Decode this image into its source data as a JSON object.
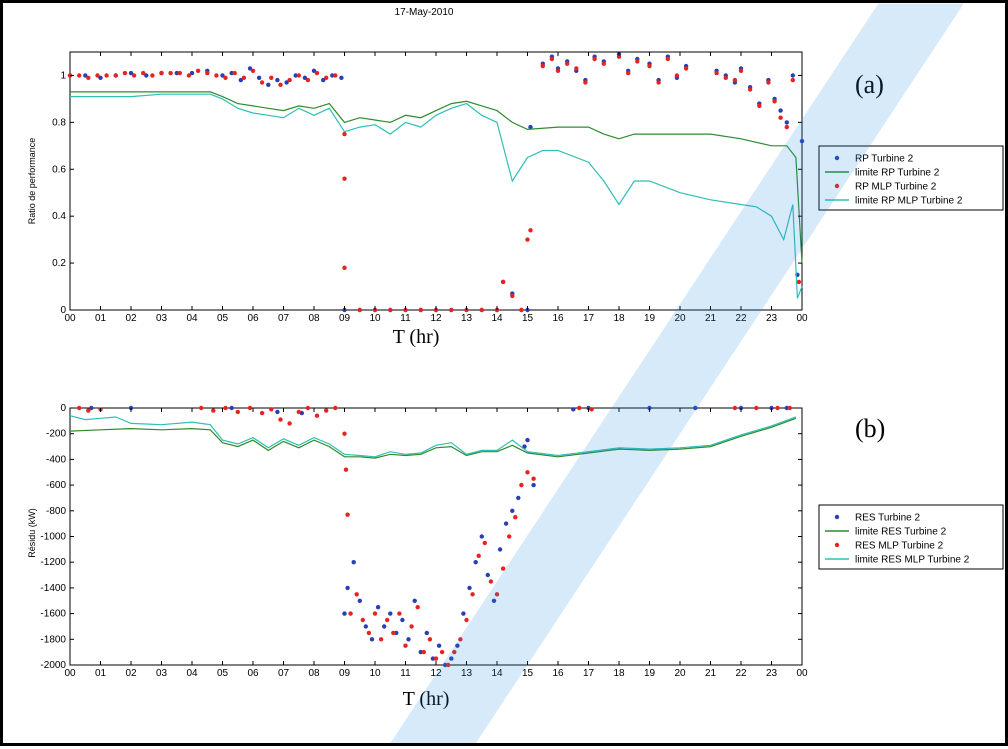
{
  "chart_data": [
    {
      "type": "scatter",
      "panel_label": "(a)",
      "title": "17-May-2010",
      "xlabel": "T (hr)",
      "ylabel": "Ratio de performance",
      "xlim": [
        0,
        24
      ],
      "ylim": [
        0,
        1.1
      ],
      "xticks": [
        "00",
        "01",
        "02",
        "03",
        "04",
        "05",
        "06",
        "07",
        "08",
        "09",
        "10",
        "11",
        "12",
        "13",
        "14",
        "15",
        "16",
        "17",
        "18",
        "19",
        "20",
        "21",
        "22",
        "23",
        "00"
      ],
      "yticks": [
        "0",
        "0.2",
        "0.4",
        "0.6",
        "0.8",
        "1"
      ],
      "legend_position": "right",
      "series": [
        {
          "name": "RP Turbine 2",
          "kind": "points",
          "color": "#2a3fb5",
          "x": [
            0,
            0.5,
            1,
            1.5,
            2,
            2.5,
            3,
            3.5,
            4,
            4.5,
            5,
            5.3,
            5.6,
            5.9,
            6.2,
            6.5,
            6.8,
            7.1,
            7.4,
            7.7,
            8,
            8.3,
            8.6,
            8.9,
            9,
            9.5,
            10,
            10.5,
            11,
            11.5,
            12,
            12.5,
            13,
            13.5,
            14,
            14.2,
            14.5,
            14.8,
            15,
            15.1,
            15.5,
            15.8,
            16,
            16.3,
            16.6,
            16.9,
            17.2,
            17.5,
            18,
            18.3,
            18.6,
            19,
            19.3,
            19.6,
            19.9,
            20.2,
            21.2,
            21.5,
            21.8,
            22,
            22.3,
            22.6,
            22.9,
            23.1,
            23.3,
            23.5,
            23.7,
            23.85,
            24
          ],
          "y": [
            1.0,
            1.0,
            0.99,
            1.0,
            1.01,
            1.0,
            1.01,
            1.01,
            1.01,
            1.02,
            1.0,
            1.01,
            0.98,
            1.03,
            0.99,
            0.96,
            0.98,
            0.97,
            1.0,
            0.99,
            1.02,
            0.98,
            1.0,
            0.99,
            0,
            0,
            0,
            0,
            0,
            0,
            0,
            0,
            0,
            0,
            0,
            0.12,
            0.07,
            0.0,
            0.0,
            0.78,
            1.05,
            1.08,
            1.03,
            1.06,
            1.02,
            0.98,
            1.08,
            1.06,
            1.09,
            1.02,
            1.07,
            1.05,
            0.98,
            1.08,
            0.99,
            1.04,
            1.02,
            1.0,
            0.97,
            1.03,
            0.95,
            0.88,
            0.98,
            0.9,
            0.85,
            0.8,
            1.0,
            0.15,
            0.72
          ]
        },
        {
          "name": "limite RP Turbine 2",
          "kind": "line",
          "color": "#2e8b2e",
          "x": [
            0,
            1,
            2,
            3,
            4,
            4.6,
            5,
            5.5,
            6,
            6.5,
            7,
            7.5,
            8,
            8.5,
            9,
            9.5,
            10,
            10.5,
            11,
            11.5,
            12,
            12.5,
            13,
            13.5,
            14,
            14.5,
            15,
            16,
            17,
            17.5,
            18,
            18.5,
            19,
            20,
            21,
            22,
            23,
            23.5,
            23.8,
            24
          ],
          "y": [
            0.93,
            0.93,
            0.93,
            0.93,
            0.93,
            0.93,
            0.91,
            0.88,
            0.87,
            0.86,
            0.85,
            0.87,
            0.86,
            0.88,
            0.8,
            0.82,
            0.81,
            0.8,
            0.83,
            0.82,
            0.85,
            0.88,
            0.89,
            0.87,
            0.85,
            0.8,
            0.77,
            0.78,
            0.78,
            0.75,
            0.73,
            0.75,
            0.75,
            0.75,
            0.75,
            0.73,
            0.7,
            0.7,
            0.65,
            0.2
          ]
        },
        {
          "name": "RP MLP Turbine 2",
          "kind": "points",
          "color": "#e8231f",
          "x": [
            0,
            0.3,
            0.6,
            0.9,
            1.2,
            1.5,
            1.8,
            2.1,
            2.4,
            2.7,
            3,
            3.3,
            3.6,
            3.9,
            4.2,
            4.5,
            4.8,
            5.1,
            5.4,
            5.7,
            6,
            6.3,
            6.6,
            6.9,
            7.2,
            7.5,
            7.8,
            8.1,
            8.4,
            8.7,
            9,
            9,
            9,
            9.5,
            10,
            10.5,
            11,
            11.5,
            12,
            12.5,
            13,
            13.5,
            14,
            14.2,
            14.5,
            14.8,
            15,
            15.1,
            15.5,
            15.8,
            16,
            16.3,
            16.6,
            16.9,
            17.2,
            17.5,
            18,
            18.3,
            18.6,
            19,
            19.3,
            19.6,
            19.9,
            20.2,
            21.2,
            21.5,
            21.8,
            22,
            22.3,
            22.6,
            22.9,
            23.1,
            23.3,
            23.5,
            23.7,
            23.9
          ],
          "y": [
            1.0,
            1.0,
            0.99,
            1.0,
            1.0,
            1.0,
            1.01,
            1.0,
            1.01,
            1.0,
            1.01,
            1.01,
            1.01,
            1.0,
            1.02,
            1.01,
            1.0,
            0.99,
            1.01,
            0.99,
            1.02,
            0.97,
            0.99,
            0.96,
            0.98,
            1.0,
            0.98,
            1.01,
            0.99,
            1.0,
            0.75,
            0.56,
            0.18,
            0,
            0,
            0,
            0,
            0,
            0,
            0,
            0,
            0,
            0,
            0.12,
            0.06,
            0.0,
            0.3,
            0.34,
            1.04,
            1.07,
            1.02,
            1.05,
            1.03,
            0.97,
            1.07,
            1.05,
            1.08,
            1.01,
            1.06,
            1.04,
            0.97,
            1.07,
            1.0,
            1.03,
            1.01,
            0.99,
            0.98,
            1.02,
            0.94,
            0.87,
            0.97,
            0.89,
            0.82,
            0.78,
            0.98,
            0.12
          ]
        },
        {
          "name": "limite RP MLP Turbine 2",
          "kind": "line",
          "color": "#2ebfb5",
          "x": [
            0,
            1,
            2,
            3,
            4,
            4.6,
            5,
            5.5,
            6,
            6.5,
            7,
            7.5,
            8,
            8.5,
            9,
            9.5,
            10,
            10.5,
            11,
            11.5,
            12,
            12.5,
            13,
            13.5,
            14,
            14.5,
            15,
            15.5,
            16,
            17,
            17.5,
            18,
            18.5,
            19,
            20,
            21,
            22,
            22.5,
            23,
            23.4,
            23.7,
            23.85,
            24
          ],
          "y": [
            0.91,
            0.91,
            0.91,
            0.92,
            0.92,
            0.92,
            0.9,
            0.86,
            0.84,
            0.83,
            0.82,
            0.86,
            0.83,
            0.86,
            0.76,
            0.78,
            0.79,
            0.75,
            0.8,
            0.78,
            0.83,
            0.86,
            0.88,
            0.83,
            0.8,
            0.55,
            0.65,
            0.68,
            0.68,
            0.63,
            0.55,
            0.45,
            0.55,
            0.55,
            0.5,
            0.47,
            0.45,
            0.44,
            0.4,
            0.3,
            0.45,
            0.05,
            0.1
          ]
        }
      ]
    },
    {
      "type": "scatter",
      "panel_label": "(b)",
      "title": "",
      "xlabel": "T (hr)",
      "ylabel": "Résidu (kW)",
      "xlim": [
        0,
        24
      ],
      "ylim": [
        -2000,
        0
      ],
      "xticks": [
        "00",
        "01",
        "02",
        "03",
        "04",
        "05",
        "06",
        "07",
        "08",
        "09",
        "10",
        "11",
        "12",
        "13",
        "14",
        "15",
        "16",
        "17",
        "18",
        "19",
        "20",
        "21",
        "22",
        "23",
        "00"
      ],
      "yticks": [
        "0",
        "-200",
        "-400",
        "-600",
        "-800",
        "-1000",
        "-1200",
        "-1400",
        "-1600",
        "-1800",
        "-2000"
      ],
      "legend_position": "right",
      "series": [
        {
          "name": "RES Turbine 2",
          "kind": "points",
          "color": "#2a3fb5",
          "x": [
            0.7,
            2,
            5.3,
            6.8,
            7.6,
            9,
            9.1,
            9.3,
            9.5,
            9.7,
            9.9,
            10.1,
            10.3,
            10.5,
            10.7,
            10.9,
            11.1,
            11.3,
            11.5,
            11.7,
            11.9,
            12.1,
            12.3,
            12.5,
            12.7,
            12.9,
            13.1,
            13.3,
            13.5,
            13.7,
            13.9,
            14.1,
            14.3,
            14.5,
            14.7,
            14.9,
            15,
            15.2,
            16.5,
            17,
            19,
            20.5,
            22,
            23,
            23.5
          ],
          "y": [
            0,
            0,
            0,
            -30,
            -40,
            -1600,
            -1400,
            -1200,
            -1500,
            -1700,
            -1800,
            -1550,
            -1700,
            -1600,
            -1750,
            -1650,
            -1800,
            -1500,
            -1900,
            -1750,
            -1950,
            -1850,
            -2000,
            -1950,
            -1850,
            -1600,
            -1400,
            -1200,
            -1000,
            -1300,
            -1500,
            -1100,
            -900,
            -800,
            -700,
            -300,
            -250,
            -600,
            -10,
            0,
            0,
            0,
            0,
            0,
            0
          ]
        },
        {
          "name": "limite RES Turbine 2",
          "kind": "line",
          "color": "#2e8b2e",
          "x": [
            0,
            1,
            2,
            3,
            4,
            4.6,
            5,
            5.5,
            6,
            6.5,
            7,
            7.5,
            8,
            8.5,
            9,
            9.5,
            10,
            10.5,
            11,
            11.5,
            12,
            12.5,
            13,
            13.5,
            14,
            14.5,
            15,
            16,
            17,
            18,
            19,
            20,
            21,
            22,
            23,
            23.8
          ],
          "y": [
            -180,
            -170,
            -160,
            -170,
            -160,
            -170,
            -270,
            -300,
            -250,
            -330,
            -260,
            -310,
            -250,
            -300,
            -380,
            -380,
            -390,
            -360,
            -370,
            -360,
            -310,
            -300,
            -370,
            -340,
            -340,
            -290,
            -350,
            -380,
            -350,
            -320,
            -330,
            -320,
            -300,
            -220,
            -150,
            -80
          ]
        },
        {
          "name": "RES MLP Turbine 2",
          "kind": "points",
          "color": "#e8231f",
          "x": [
            0.3,
            0.6,
            1,
            4.3,
            4.7,
            5.1,
            5.5,
            5.9,
            6.3,
            6.6,
            6.9,
            7.2,
            7.5,
            7.8,
            8.1,
            8.4,
            8.7,
            9,
            9.05,
            9.1,
            9.2,
            9.4,
            9.6,
            9.8,
            10,
            10.2,
            10.4,
            10.6,
            10.8,
            11,
            11.2,
            11.4,
            11.6,
            11.8,
            12,
            12.2,
            12.4,
            12.6,
            12.8,
            13,
            13.2,
            13.4,
            13.6,
            13.8,
            14,
            14.2,
            14.4,
            14.6,
            14.8,
            15,
            15.2,
            16.7,
            17.1,
            21.8,
            22.5,
            23.2,
            23.6
          ],
          "y": [
            0,
            -20,
            -10,
            0,
            -20,
            0,
            -30,
            0,
            -40,
            -10,
            -90,
            -120,
            -30,
            0,
            -60,
            -20,
            0,
            -200,
            -480,
            -830,
            -1600,
            -1450,
            -1650,
            -1750,
            -1600,
            -1800,
            -1650,
            -1750,
            -1600,
            -1850,
            -1700,
            -1550,
            -1900,
            -1800,
            -1950,
            -1900,
            -2000,
            -1900,
            -1800,
            -1650,
            -1450,
            -1150,
            -1050,
            -1350,
            -1450,
            -1250,
            -1000,
            -850,
            -600,
            -500,
            -550,
            0,
            -10,
            0,
            0,
            0,
            0
          ]
        },
        {
          "name": "limite RES MLP Turbine 2",
          "kind": "line",
          "color": "#2ebfb5",
          "x": [
            0,
            0.5,
            1,
            1.5,
            2,
            3,
            4,
            4.6,
            5,
            5.5,
            6,
            6.5,
            7,
            7.5,
            8,
            8.5,
            9,
            9.5,
            10,
            10.5,
            11,
            11.5,
            12,
            12.5,
            13,
            13.5,
            14,
            14.5,
            15,
            16,
            17,
            18,
            19,
            20,
            21,
            22,
            23,
            23.8
          ],
          "y": [
            -60,
            -90,
            -80,
            -70,
            -120,
            -130,
            -110,
            -130,
            -250,
            -280,
            -230,
            -310,
            -240,
            -290,
            -230,
            -280,
            -360,
            -370,
            -380,
            -340,
            -360,
            -350,
            -290,
            -270,
            -360,
            -330,
            -330,
            -250,
            -340,
            -370,
            -340,
            -310,
            -320,
            -310,
            -290,
            -210,
            -140,
            -70
          ]
        }
      ]
    }
  ]
}
